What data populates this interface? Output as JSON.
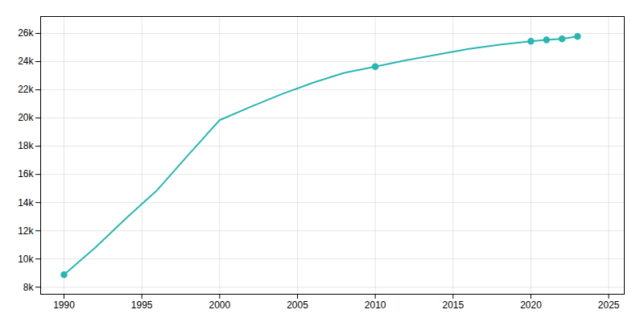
{
  "chart_data": {
    "type": "line",
    "x": [
      1990,
      1992,
      1994,
      1996,
      1998,
      2000,
      2002,
      2004,
      2006,
      2008,
      2010,
      2012,
      2014,
      2016,
      2018,
      2020,
      2021,
      2022,
      2023
    ],
    "series": [
      {
        "type": "line",
        "color": "#2ab5b2",
        "values": [
          8880,
          10800,
          12900,
          14900,
          17400,
          19850,
          20800,
          21700,
          22500,
          23200,
          23647,
          24100,
          24500,
          24900,
          25200,
          25450,
          25550,
          25620,
          25790
        ]
      },
      {
        "type": "scatter",
        "marker": "o",
        "color": "#2ab5b2",
        "values": [
          8880,
          null,
          null,
          null,
          null,
          null,
          null,
          null,
          null,
          null,
          23647,
          null,
          null,
          null,
          null,
          25450,
          25550,
          25620,
          25790
        ]
      }
    ],
    "xlim": [
      1988.5,
      2026
    ],
    "ylim": [
      7500,
      27200
    ],
    "xticks": [
      1990,
      1995,
      2000,
      2005,
      2010,
      2015,
      2020,
      2025
    ],
    "yticks": [
      {
        "value": 8000,
        "label": "8k"
      },
      {
        "value": 10000,
        "label": "10k"
      },
      {
        "value": 12000,
        "label": "12k"
      },
      {
        "value": 14000,
        "label": "14k"
      },
      {
        "value": 16000,
        "label": "16k"
      },
      {
        "value": 18000,
        "label": "18k"
      },
      {
        "value": 20000,
        "label": "20k"
      },
      {
        "value": 22000,
        "label": "22k"
      },
      {
        "value": 24000,
        "label": "24k"
      },
      {
        "value": 26000,
        "label": "26k"
      }
    ],
    "grid": true
  }
}
